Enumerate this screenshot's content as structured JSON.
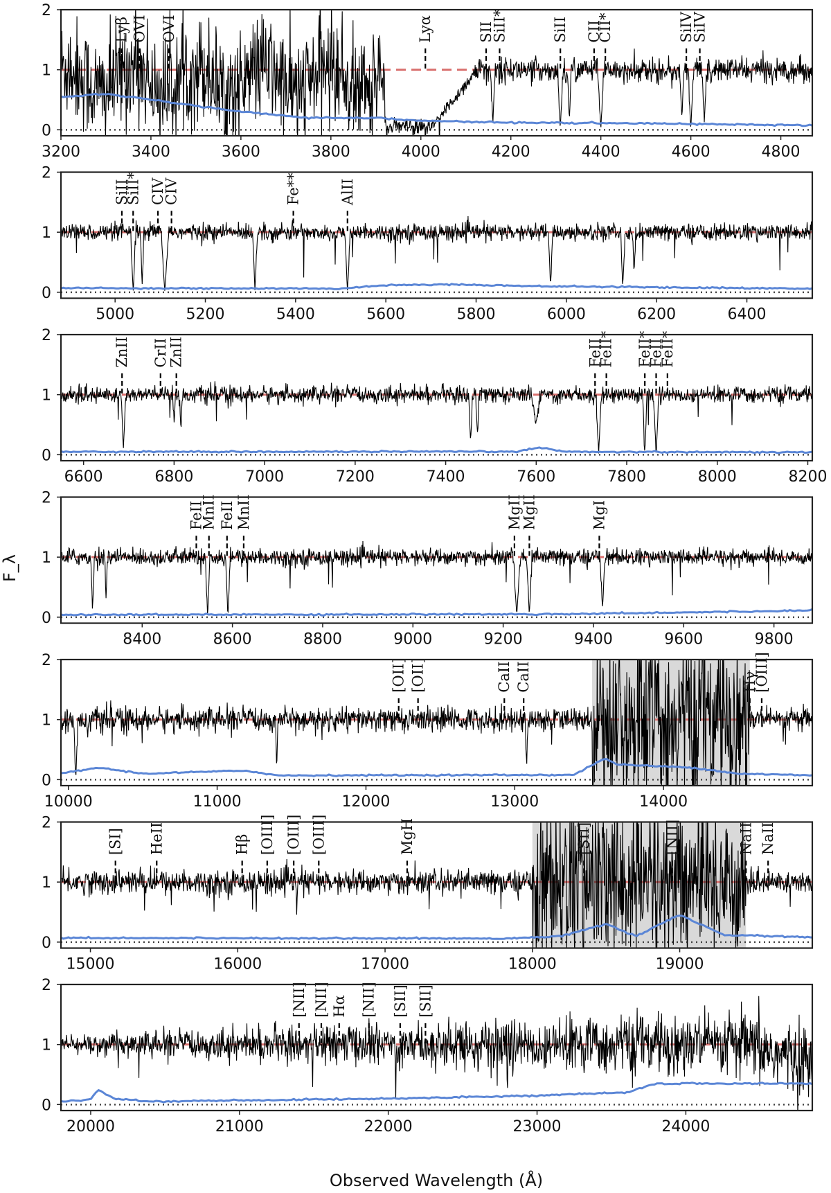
{
  "figure": {
    "ylabel": "F_λ",
    "xlabel": "Observed Wavelength (Å)",
    "colors": {
      "spectrum": "#000000",
      "continuum": "#d9706e",
      "error": "#5b86d6",
      "zero": "#444444",
      "telluric_band": "#d9d9d9"
    }
  },
  "chart_data": [
    {
      "type": "line",
      "xlim": [
        3200,
        4870
      ],
      "ylim": [
        -0.1,
        2
      ],
      "xticks": [
        3200,
        3400,
        3600,
        3800,
        4000,
        4200,
        4400,
        4600,
        4800
      ],
      "yticks": [
        0,
        1,
        2
      ],
      "spectrum_profile": "lyman_forest",
      "error_profile": [
        [
          3200,
          0.55
        ],
        [
          3300,
          0.6
        ],
        [
          3450,
          0.45
        ],
        [
          3600,
          0.3
        ],
        [
          3750,
          0.2
        ],
        [
          3900,
          0.2
        ],
        [
          4000,
          0.15
        ],
        [
          4200,
          0.12
        ],
        [
          4600,
          0.1
        ],
        [
          4870,
          0.07
        ]
      ],
      "absorptions": [
        {
          "x": 4310,
          "depth": 1.0,
          "width": 6
        },
        {
          "x": 4330,
          "depth": 0.9,
          "width": 4
        },
        {
          "x": 4400,
          "depth": 1.0,
          "width": 7
        },
        {
          "x": 4580,
          "depth": 0.8,
          "width": 5
        },
        {
          "x": 4600,
          "depth": 1.0,
          "width": 6
        },
        {
          "x": 4630,
          "depth": 0.9,
          "width": 5
        },
        {
          "x": 4160,
          "depth": 0.9,
          "width": 5
        }
      ],
      "line_ids": [
        {
          "label": "Lyβ",
          "x": 3335
        },
        {
          "label": "OVI",
          "x": 3375
        },
        {
          "label": "OVI",
          "x": 3440
        },
        {
          "label": "Lyα",
          "x": 4010
        },
        {
          "label": "SII",
          "x": 4145
        },
        {
          "label": "SiII*",
          "x": 4175
        },
        {
          "label": "SiII",
          "x": 4310
        },
        {
          "label": "CII",
          "x": 4385
        },
        {
          "label": "CII*",
          "x": 4410
        },
        {
          "label": "SiIV",
          "x": 4590
        },
        {
          "label": "SiIV",
          "x": 4620
        }
      ],
      "bands": []
    },
    {
      "type": "line",
      "xlim": [
        4880,
        6545
      ],
      "ylim": [
        -0.1,
        2
      ],
      "xticks": [
        5000,
        5200,
        5400,
        5600,
        5800,
        6000,
        6200,
        6400
      ],
      "yticks": [
        0,
        1,
        2
      ],
      "spectrum_profile": "normal",
      "error_profile": [
        [
          4880,
          0.07
        ],
        [
          5500,
          0.06
        ],
        [
          5600,
          0.12
        ],
        [
          5750,
          0.13
        ],
        [
          5950,
          0.1
        ],
        [
          6545,
          0.06
        ]
      ],
      "absorptions": [
        {
          "x": 5040,
          "depth": 1.0,
          "width": 6
        },
        {
          "x": 5060,
          "depth": 0.9,
          "width": 4
        },
        {
          "x": 5110,
          "depth": 1.0,
          "width": 8
        },
        {
          "x": 5310,
          "depth": 1.0,
          "width": 5
        },
        {
          "x": 5515,
          "depth": 1.0,
          "width": 6
        },
        {
          "x": 5965,
          "depth": 0.9,
          "width": 5
        },
        {
          "x": 6125,
          "depth": 0.9,
          "width": 5
        },
        {
          "x": 6150,
          "depth": 0.7,
          "width": 4
        }
      ],
      "line_ids": [
        {
          "label": "SiII",
          "x": 5015
        },
        {
          "label": "SiII*",
          "x": 5040
        },
        {
          "label": "CIV",
          "x": 5095
        },
        {
          "label": "CIV",
          "x": 5125
        },
        {
          "label": "Fe**",
          "x": 5395
        },
        {
          "label": "AlII",
          "x": 5515
        }
      ],
      "bands": []
    },
    {
      "type": "line",
      "xlim": [
        6550,
        8210
      ],
      "ylim": [
        -0.1,
        2
      ],
      "xticks": [
        6600,
        6800,
        7000,
        7200,
        7400,
        7600,
        7800,
        8000,
        8200
      ],
      "yticks": [
        0,
        1,
        2
      ],
      "spectrum_profile": "normal",
      "error_profile": [
        [
          6550,
          0.05
        ],
        [
          7550,
          0.05
        ],
        [
          7610,
          0.12
        ],
        [
          7660,
          0.05
        ],
        [
          8210,
          0.04
        ]
      ],
      "absorptions": [
        {
          "x": 6688,
          "depth": 0.9,
          "width": 5
        },
        {
          "x": 6800,
          "depth": 0.5,
          "width": 3
        },
        {
          "x": 6815,
          "depth": 0.6,
          "width": 3
        },
        {
          "x": 7455,
          "depth": 0.8,
          "width": 4
        },
        {
          "x": 7470,
          "depth": 0.7,
          "width": 4
        },
        {
          "x": 7600,
          "depth": 0.5,
          "width": 10
        },
        {
          "x": 7738,
          "depth": 1.0,
          "width": 6
        },
        {
          "x": 7840,
          "depth": 1.0,
          "width": 5
        },
        {
          "x": 7865,
          "depth": 1.0,
          "width": 6
        }
      ],
      "line_ids": [
        {
          "label": "ZnII",
          "x": 6685
        },
        {
          "label": "CrII",
          "x": 6770
        },
        {
          "label": "ZnII",
          "x": 6805
        },
        {
          "label": "FeII",
          "x": 7730
        },
        {
          "label": "FeII*",
          "x": 7755
        },
        {
          "label": "FeII*",
          "x": 7840
        },
        {
          "label": "FeII",
          "x": 7865
        },
        {
          "label": "FeII*",
          "x": 7890
        }
      ],
      "bands": []
    },
    {
      "type": "line",
      "xlim": [
        8220,
        9885
      ],
      "ylim": [
        -0.1,
        2
      ],
      "xticks": [
        8400,
        8600,
        8800,
        9000,
        9200,
        9400,
        9600,
        9800
      ],
      "yticks": [
        0,
        1,
        2
      ],
      "spectrum_profile": "normal",
      "error_profile": [
        [
          8220,
          0.04
        ],
        [
          9300,
          0.05
        ],
        [
          9800,
          0.1
        ],
        [
          9885,
          0.12
        ]
      ],
      "absorptions": [
        {
          "x": 8290,
          "depth": 0.9,
          "width": 4
        },
        {
          "x": 8320,
          "depth": 0.7,
          "width": 3
        },
        {
          "x": 8545,
          "depth": 1.0,
          "width": 5
        },
        {
          "x": 8590,
          "depth": 1.0,
          "width": 5
        },
        {
          "x": 9230,
          "depth": 1.0,
          "width": 7
        },
        {
          "x": 9258,
          "depth": 1.0,
          "width": 6
        },
        {
          "x": 9420,
          "depth": 0.9,
          "width": 5
        }
      ],
      "line_ids": [
        {
          "label": "FeII",
          "x": 8520
        },
        {
          "label": "MnII",
          "x": 8548
        },
        {
          "label": "FeII",
          "x": 8588
        },
        {
          "label": "MnII",
          "x": 8625
        },
        {
          "label": "MgII",
          "x": 9225
        },
        {
          "label": "MgII",
          "x": 9258
        },
        {
          "label": "MgI",
          "x": 9413
        }
      ],
      "bands": []
    },
    {
      "type": "line",
      "xlim": [
        9950,
        15000
      ],
      "ylim": [
        -0.1,
        2
      ],
      "xticks": [
        10000,
        11000,
        12000,
        13000,
        14000
      ],
      "yticks": [
        0,
        1,
        2
      ],
      "spectrum_profile": "nir",
      "error_profile": [
        [
          9950,
          0.1
        ],
        [
          10200,
          0.2
        ],
        [
          10500,
          0.1
        ],
        [
          11200,
          0.15
        ],
        [
          11400,
          0.07
        ],
        [
          13400,
          0.08
        ],
        [
          13600,
          0.35
        ],
        [
          13700,
          0.25
        ],
        [
          14200,
          0.2
        ],
        [
          14500,
          0.1
        ],
        [
          15000,
          0.07
        ]
      ],
      "absorptions": [
        {
          "x": 10050,
          "depth": 1.0,
          "width": 15
        },
        {
          "x": 11400,
          "depth": 0.8,
          "width": 8
        },
        {
          "x": 13080,
          "depth": 0.8,
          "width": 10
        }
      ],
      "line_ids": [
        {
          "label": "[OII]",
          "x": 12220
        },
        {
          "label": "[OII]",
          "x": 12350
        },
        {
          "label": "CaII",
          "x": 12930
        },
        {
          "label": "CaII",
          "x": 13060
        },
        {
          "label": "Hγ",
          "x": 14580
        },
        {
          "label": "[OIII]",
          "x": 14660
        }
      ],
      "bands": [
        [
          13520,
          14580
        ]
      ]
    },
    {
      "type": "line",
      "xlim": [
        14800,
        19900
      ],
      "ylim": [
        -0.1,
        2
      ],
      "xticks": [
        15000,
        16000,
        17000,
        18000,
        19000
      ],
      "yticks": [
        0,
        1,
        2
      ],
      "spectrum_profile": "nir",
      "error_profile": [
        [
          14800,
          0.07
        ],
        [
          17800,
          0.06
        ],
        [
          18200,
          0.1
        ],
        [
          18500,
          0.3
        ],
        [
          18700,
          0.1
        ],
        [
          19000,
          0.45
        ],
        [
          19300,
          0.12
        ],
        [
          19900,
          0.08
        ]
      ],
      "absorptions": [
        {
          "x": 16400,
          "depth": 0.5,
          "width": 6
        }
      ],
      "line_ids": [
        {
          "label": "[SI]",
          "x": 15170
        },
        {
          "label": "HeII",
          "x": 15450
        },
        {
          "label": "Hβ",
          "x": 16030
        },
        {
          "label": "[OIII]",
          "x": 16200
        },
        {
          "label": "[OIII]",
          "x": 16380
        },
        {
          "label": "[OIII]",
          "x": 16550
        },
        {
          "label": "MgH",
          "x": 17150
        },
        {
          "label": "[SII]",
          "x": 18350
        },
        {
          "label": "[NII]",
          "x": 18950
        },
        {
          "label": "NaII",
          "x": 19450
        },
        {
          "label": "NaII",
          "x": 19600
        }
      ],
      "bands": [
        [
          18000,
          19450
        ]
      ]
    },
    {
      "type": "line",
      "xlim": [
        19800,
        24850
      ],
      "ylim": [
        -0.1,
        2
      ],
      "xticks": [
        20000,
        21000,
        22000,
        23000,
        24000
      ],
      "yticks": [
        0,
        1,
        2
      ],
      "spectrum_profile": "kband",
      "error_profile": [
        [
          19800,
          0.05
        ],
        [
          20000,
          0.08
        ],
        [
          20050,
          0.25
        ],
        [
          20150,
          0.1
        ],
        [
          20400,
          0.05
        ],
        [
          22000,
          0.1
        ],
        [
          23000,
          0.15
        ],
        [
          23600,
          0.2
        ],
        [
          23800,
          0.35
        ],
        [
          24850,
          0.35
        ]
      ],
      "absorptions": [
        {
          "x": 22050,
          "depth": 1.0,
          "width": 5
        },
        {
          "x": 22800,
          "depth": 1.0,
          "width": 4
        }
      ],
      "line_ids": [
        {
          "label": "[NII]",
          "x": 21400
        },
        {
          "label": "[NII]",
          "x": 21550
        },
        {
          "label": "Hα",
          "x": 21670
        },
        {
          "label": "[NII]",
          "x": 21870
        },
        {
          "label": "[SII]",
          "x": 22080
        },
        {
          "label": "[SII]",
          "x": 22250
        }
      ],
      "bands": []
    }
  ]
}
